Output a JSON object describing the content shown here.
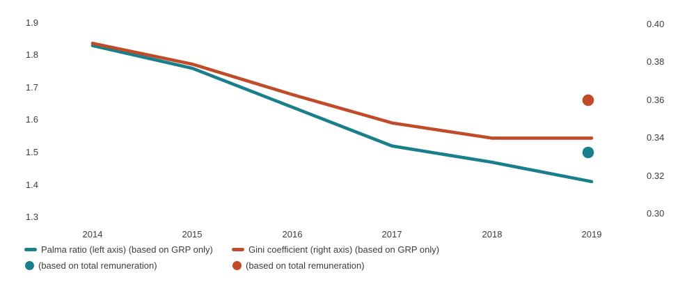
{
  "colors": {
    "palma_teal": "#187f8b",
    "gini_red": "#c04b28",
    "axis_text": "#3c3c3c",
    "background": "#ffffff"
  },
  "chart_data": {
    "type": "line",
    "title": "",
    "xlabel": "",
    "ylabel_left": "",
    "ylabel_right": "",
    "grid": false,
    "legend_position": "bottom",
    "x": [
      2014,
      2015,
      2016,
      2017,
      2018,
      2019
    ],
    "x_ticks": [
      "2014",
      "2015",
      "2016",
      "2017",
      "2018",
      "2019"
    ],
    "left_axis": {
      "ticks": [
        "1.9",
        "1.8",
        "1.7",
        "1.6",
        "1.5",
        "1.4",
        "1.3"
      ],
      "range": [
        1.3,
        1.9
      ]
    },
    "right_axis": {
      "ticks": [
        "0.40",
        "0.38",
        "0.36",
        "0.34",
        "0.32",
        "0.30"
      ],
      "range": [
        0.3,
        0.4
      ]
    },
    "series": [
      {
        "name": "Palma ratio (left axis) (based on GRP only)",
        "axis": "left",
        "color": "#187f8b",
        "values": [
          1.83,
          1.76,
          1.64,
          1.52,
          1.47,
          1.41
        ]
      },
      {
        "name": "Gini coefficient (right axis) (based on GRP only)",
        "axis": "right",
        "color": "#c04b28",
        "values": [
          0.39,
          0.379,
          0.363,
          0.348,
          0.34,
          0.34
        ]
      }
    ],
    "points": [
      {
        "name": "Palma ratio (based on total remuneration)",
        "axis": "left",
        "x": 2019,
        "value": 1.5,
        "color": "#187f8b"
      },
      {
        "name": "Gini coefficient (based on total remuneration)",
        "axis": "right",
        "x": 2019,
        "value": 0.36,
        "color": "#c04b28"
      }
    ]
  },
  "legend": {
    "items": [
      {
        "swatch": "line",
        "color": "#187f8b",
        "label": "Palma ratio (left axis) (based on GRP only)"
      },
      {
        "swatch": "line",
        "color": "#c04b28",
        "label": "Gini coefficient (right axis) (based on GRP only)"
      },
      {
        "swatch": "dot",
        "color": "#187f8b",
        "label": "(based on total remuneration)"
      },
      {
        "swatch": "dot",
        "color": "#c04b28",
        "label": "(based on total remuneration)"
      }
    ]
  }
}
